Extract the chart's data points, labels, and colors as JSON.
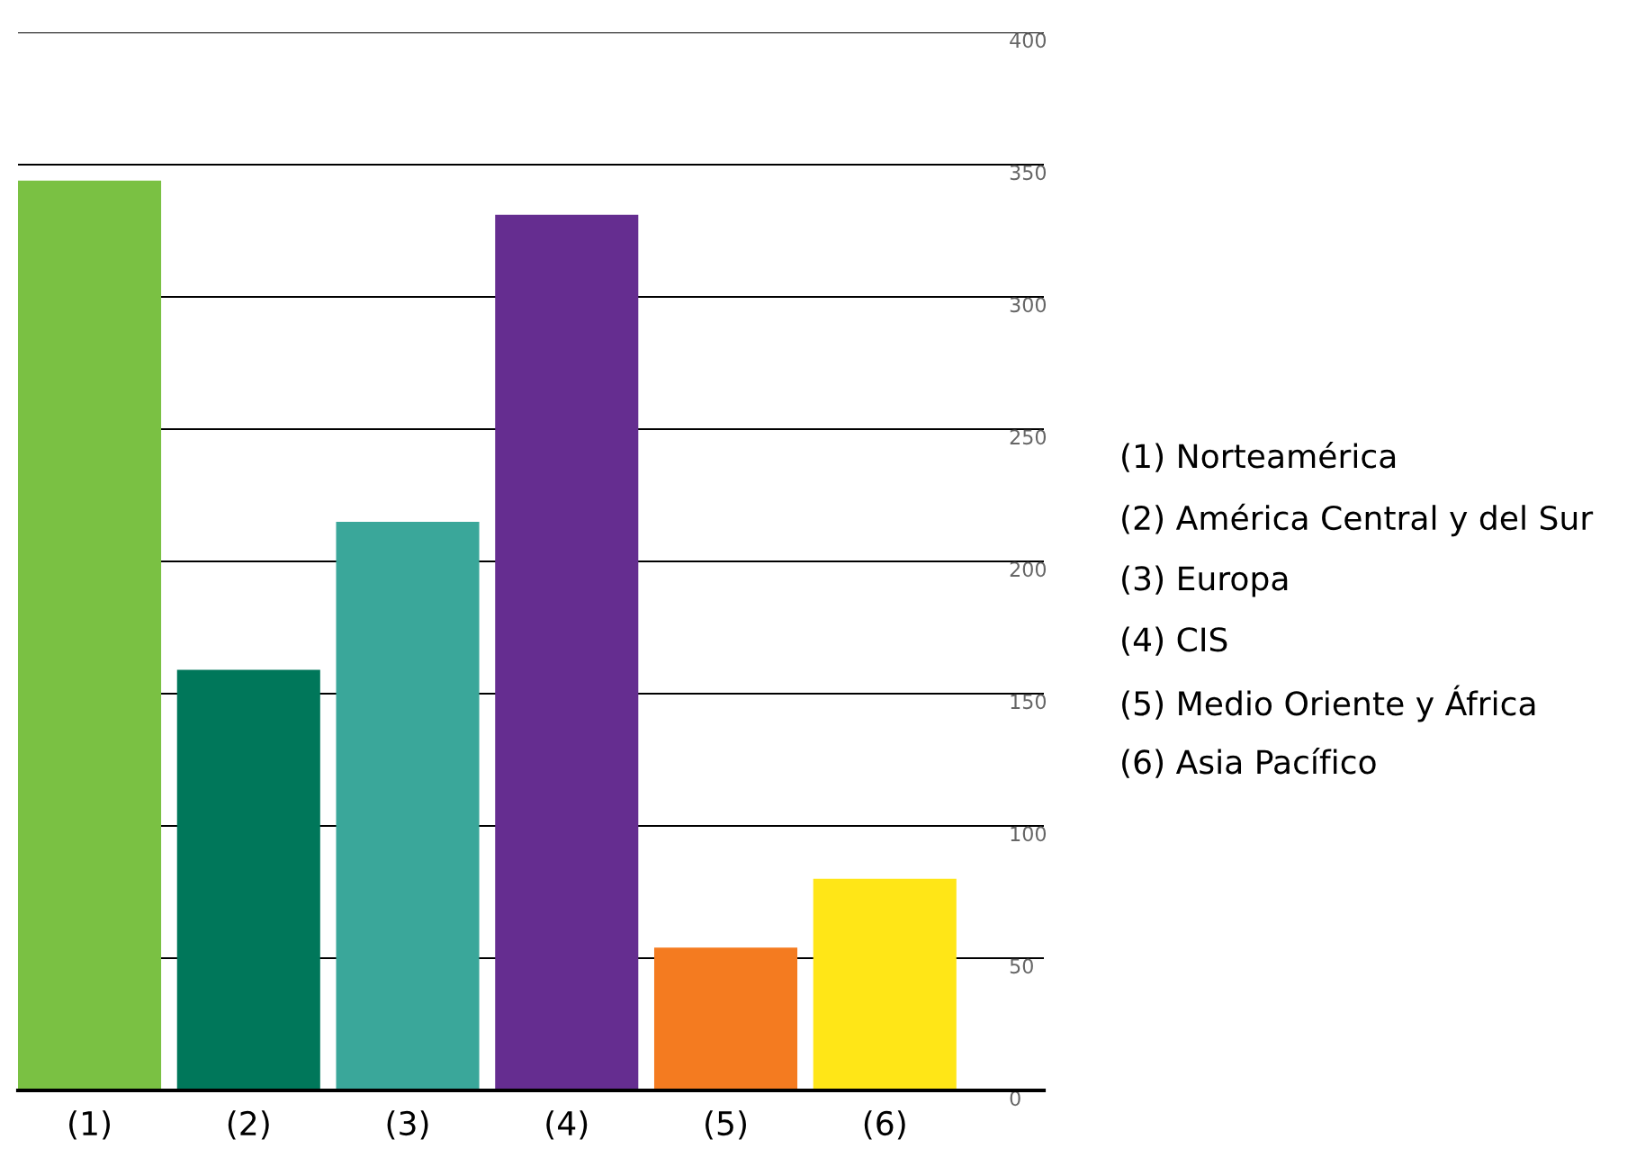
{
  "chart_data": {
    "type": "bar",
    "categories": [
      "(1)",
      "(2)",
      "(3)",
      "(4)",
      "(5)",
      "(6)"
    ],
    "values": [
      344,
      159,
      215,
      331,
      54,
      80
    ],
    "colors": [
      "#7ac143",
      "#00775a",
      "#3aa79a",
      "#652d90",
      "#f47b20",
      "#ffe617"
    ],
    "ylim": [
      0,
      400
    ],
    "yticks": [
      0,
      50,
      100,
      150,
      200,
      250,
      300,
      350,
      400
    ],
    "grid": "y",
    "annotations": [
      "(1) Norteamérica",
      "(2) América Central y del Sur",
      "(3) Europa",
      "(4) CIS",
      "(5) Medio Oriente y África",
      "(6) Asia Pacífico"
    ]
  }
}
